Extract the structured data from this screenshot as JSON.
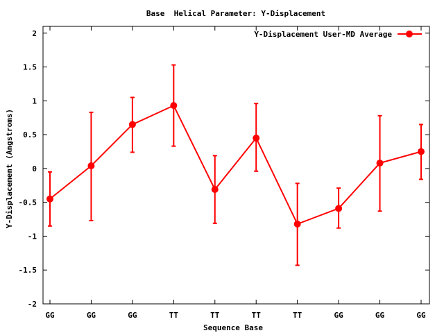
{
  "chart_data": {
    "type": "line",
    "title": "Base  Helical Parameter: Y-Displacement",
    "xlabel": "Sequence Base",
    "ylabel": "Y-Displacement (Angstroms)",
    "categories": [
      "GG",
      "GG",
      "GG",
      "TT",
      "TT",
      "TT",
      "TT",
      "GG",
      "GG",
      "GG"
    ],
    "ylim": [
      -2,
      2.1
    ],
    "yticks": [
      -2,
      -1.5,
      -1,
      -0.5,
      0,
      0.5,
      1,
      1.5,
      2
    ],
    "ytick_labels": [
      "-2",
      "-1.5",
      "-1",
      "-0.5",
      "0",
      "0.5",
      "1",
      "1.5",
      "2"
    ],
    "grid": false,
    "legend_position": "top-right",
    "series": [
      {
        "name": "Y-Displacement User-MD Average",
        "color": "#ff0000",
        "marker": "circle",
        "values": [
          -0.45,
          0.04,
          0.65,
          0.93,
          -0.31,
          0.45,
          -0.82,
          -0.59,
          0.08,
          0.25
        ],
        "error_low": [
          -0.85,
          -0.77,
          0.24,
          0.33,
          -0.81,
          -0.04,
          -1.43,
          -0.88,
          -0.63,
          -0.16
        ],
        "error_high": [
          -0.05,
          0.83,
          1.05,
          1.53,
          0.19,
          0.96,
          -0.22,
          -0.29,
          0.78,
          0.65
        ]
      }
    ]
  }
}
